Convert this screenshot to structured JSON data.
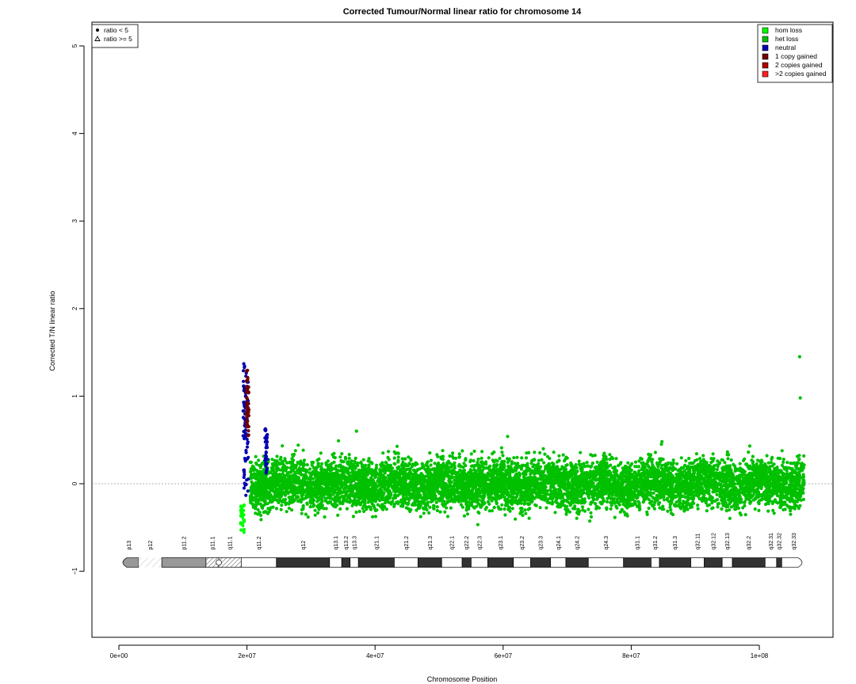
{
  "chart_data": {
    "type": "scatter",
    "title": "Corrected Tumour/Normal linear ratio for chromosome  14",
    "xlabel": "Chromosome Position",
    "ylabel": "Corrected T/N linear ratio",
    "xlim": [
      -4000000,
      112000000
    ],
    "ylim": [
      -1.8,
      5.3
    ],
    "x_ticks": [
      0,
      20000000,
      40000000,
      60000000,
      80000000,
      100000000
    ],
    "x_tick_labels": [
      "0e+00",
      "2e+07",
      "4e+07",
      "6e+07",
      "8e+07",
      "1e+08"
    ],
    "y_ticks": [
      -1,
      0,
      1,
      2,
      3,
      4,
      5
    ],
    "y_tick_labels": [
      "−1",
      "0",
      "1",
      "2",
      "3",
      "4",
      "5"
    ],
    "reference_line_y": 0,
    "shape_legend": {
      "position": "top-left",
      "entries": [
        {
          "label": "ratio < 5",
          "marker": "dot"
        },
        {
          "label": "ratio >= 5",
          "marker": "triangle"
        }
      ]
    },
    "color_legend": {
      "position": "top-right",
      "entries": [
        {
          "label": "hom loss",
          "color": "#00ff00"
        },
        {
          "label": "het loss",
          "color": "#00c000"
        },
        {
          "label": "neutral",
          "color": "#0000b0"
        },
        {
          "label": "1 copy gained",
          "color": "#700000"
        },
        {
          "label": "2 copies gained",
          "color": "#b00000"
        },
        {
          "label": ">2 copies gained",
          "color": "#ff2020"
        }
      ]
    },
    "series": [
      {
        "name": "het loss",
        "color": "#00c000",
        "x_range": [
          20500000,
          107000000
        ],
        "y_center": 0.0,
        "y_spread": 0.14,
        "approx_points": 7500
      },
      {
        "name": "hom loss",
        "color": "#00ff00",
        "x_range": [
          19000000,
          19600000
        ],
        "values_y_range": [
          -0.6,
          -0.2
        ],
        "approx_points": 25
      },
      {
        "name": "neutral",
        "color": "#0000b0",
        "cluster_x": [
          19400000,
          20200000,
          22800000,
          23200000
        ],
        "values_y_range": [
          -0.2,
          1.37
        ],
        "approx_points": 110
      },
      {
        "name": "1 copy gained",
        "color": "#700000",
        "x_range": [
          19900000,
          20300000
        ],
        "values_y_range": [
          0.55,
          1.3
        ],
        "approx_points": 60
      }
    ],
    "notable_points": [
      {
        "x": 106300000,
        "y": 1.45,
        "series": "het loss"
      },
      {
        "x": 106400000,
        "y": 0.98,
        "series": "het loss"
      },
      {
        "x": 37100000,
        "y": 0.6,
        "series": "het loss"
      },
      {
        "x": 60700000,
        "y": 0.54,
        "series": "het loss"
      },
      {
        "x": 84800000,
        "y": 0.48,
        "series": "het loss"
      },
      {
        "x": 34300000,
        "y": 0.49,
        "series": "het loss"
      },
      {
        "x": 28000000,
        "y": 0.44,
        "series": "het loss"
      },
      {
        "x": 19500000,
        "y": 1.37,
        "series": "neutral"
      }
    ],
    "ideogram": {
      "y_level": -0.9,
      "bands": [
        {
          "name": "p13",
          "start": 0,
          "end": 3100000,
          "stain": "gvar"
        },
        {
          "name": "p12",
          "start": 3100000,
          "end": 6700000,
          "stain": "stalk"
        },
        {
          "name": "p11.2",
          "start": 6700000,
          "end": 13600000,
          "stain": "gvar"
        },
        {
          "name": "p11.1",
          "start": 13600000,
          "end": 15600000,
          "stain": "acen"
        },
        {
          "name": "q11.1",
          "start": 15600000,
          "end": 19100000,
          "stain": "acen"
        },
        {
          "name": "q11.2",
          "start": 19100000,
          "end": 24600000,
          "stain": "gneg"
        },
        {
          "name": "q12",
          "start": 24600000,
          "end": 32900000,
          "stain": "gpos100"
        },
        {
          "name": "q13.1",
          "start": 32900000,
          "end": 34800000,
          "stain": "gneg"
        },
        {
          "name": "q13.2",
          "start": 34800000,
          "end": 36100000,
          "stain": "gpos100"
        },
        {
          "name": "q13.3",
          "start": 36100000,
          "end": 37400000,
          "stain": "gneg"
        },
        {
          "name": "q21.1",
          "start": 37400000,
          "end": 43000000,
          "stain": "gpos100"
        },
        {
          "name": "q21.2",
          "start": 43000000,
          "end": 46700000,
          "stain": "gneg"
        },
        {
          "name": "q21.3",
          "start": 46700000,
          "end": 50400000,
          "stain": "gpos100"
        },
        {
          "name": "q22.1",
          "start": 50400000,
          "end": 53600000,
          "stain": "gneg"
        },
        {
          "name": "q22.2",
          "start": 53600000,
          "end": 55000000,
          "stain": "gpos100"
        },
        {
          "name": "q22.3",
          "start": 55000000,
          "end": 57600000,
          "stain": "gneg"
        },
        {
          "name": "q23.1",
          "start": 57600000,
          "end": 61600000,
          "stain": "gpos100"
        },
        {
          "name": "q23.2",
          "start": 61600000,
          "end": 64300000,
          "stain": "gneg"
        },
        {
          "name": "q23.3",
          "start": 64300000,
          "end": 67400000,
          "stain": "gpos100"
        },
        {
          "name": "q24.1",
          "start": 67400000,
          "end": 69800000,
          "stain": "gneg"
        },
        {
          "name": "q24.2",
          "start": 69800000,
          "end": 73300000,
          "stain": "gpos100"
        },
        {
          "name": "q24.3",
          "start": 73300000,
          "end": 78800000,
          "stain": "gneg"
        },
        {
          "name": "q31.1",
          "start": 78800000,
          "end": 83100000,
          "stain": "gpos100"
        },
        {
          "name": "q31.2",
          "start": 83100000,
          "end": 84400000,
          "stain": "gneg"
        },
        {
          "name": "q31.3",
          "start": 84400000,
          "end": 89300000,
          "stain": "gpos100"
        },
        {
          "name": "q32.11",
          "start": 89300000,
          "end": 91400000,
          "stain": "gneg"
        },
        {
          "name": "q32.12",
          "start": 91400000,
          "end": 94200000,
          "stain": "gpos100"
        },
        {
          "name": "q32.13",
          "start": 94200000,
          "end": 95800000,
          "stain": "gneg"
        },
        {
          "name": "q32.2",
          "start": 95800000,
          "end": 100900000,
          "stain": "gpos100"
        },
        {
          "name": "q32.31",
          "start": 100900000,
          "end": 102700000,
          "stain": "gneg"
        },
        {
          "name": "q32.32",
          "start": 102700000,
          "end": 103500000,
          "stain": "gpos100"
        },
        {
          "name": "q32.33",
          "start": 103500000,
          "end": 107300000,
          "stain": "gneg"
        }
      ]
    }
  }
}
